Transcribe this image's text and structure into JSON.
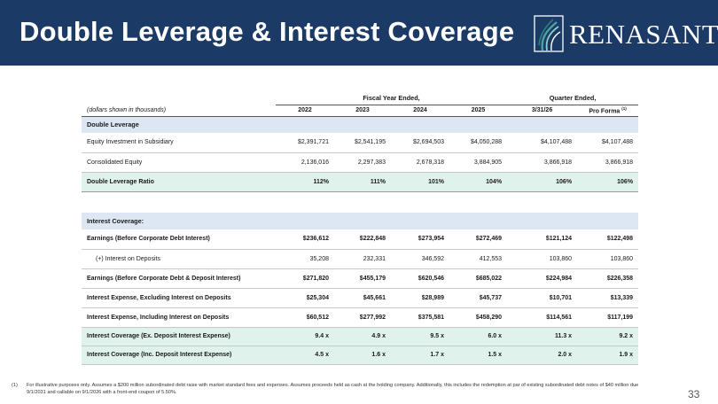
{
  "header": {
    "title": "Double Leverage & Interest Coverage",
    "logo_text": "RENASANT"
  },
  "table": {
    "group_labels": {
      "fiscal": "Fiscal Year Ended,",
      "quarter": "Quarter Ended,"
    },
    "units_note": "(dollars shown in thousands)",
    "columns": [
      "2022",
      "2023",
      "2024",
      "2025",
      "3/31/26",
      "Pro Forma"
    ],
    "pro_forma_footnote_ref": "(1)",
    "double_leverage": {
      "section_label": "Double Leverage",
      "rows": [
        {
          "label": "Equity Investment in Subsidiary",
          "values": [
            "$2,391,721",
            "$2,541,195",
            "$2,694,503",
            "$4,050,288",
            "$4,107,488",
            "$4,107,488"
          ]
        },
        {
          "label": "Consolidated Equity",
          "values": [
            "2,136,016",
            "2,297,383",
            "2,678,318",
            "3,884,905",
            "3,866,918",
            "3,866,918"
          ]
        },
        {
          "label": "Double Leverage Ratio",
          "values": [
            "112%",
            "111%",
            "101%",
            "104%",
            "106%",
            "106%"
          ]
        }
      ]
    },
    "interest_coverage": {
      "section_label": "Interest Coverage:",
      "rows": [
        {
          "label": "Earnings (Before Corporate Debt Interest)",
          "values": [
            "$236,612",
            "$222,848",
            "$273,954",
            "$272,469",
            "$121,124",
            "$122,498"
          ]
        },
        {
          "label": "(+) Interest on Deposits",
          "values": [
            "35,208",
            "232,331",
            "346,592",
            "412,553",
            "103,860",
            "103,860"
          ]
        },
        {
          "label": "Earnings (Before Corporate Debt & Deposit Interest)",
          "values": [
            "$271,820",
            "$455,179",
            "$620,546",
            "$685,022",
            "$224,984",
            "$226,358"
          ]
        },
        {
          "label": "Interest Expense, Excluding Interest on Deposits",
          "values": [
            "$25,304",
            "$45,661",
            "$28,989",
            "$45,737",
            "$10,701",
            "$13,339"
          ]
        },
        {
          "label": "Interest Expense, Including Interest on Deposits",
          "values": [
            "$60,512",
            "$277,992",
            "$375,581",
            "$458,290",
            "$114,561",
            "$117,199"
          ]
        },
        {
          "label": "Interest Coverage (Ex. Deposit Interest Expense)",
          "values": [
            "9.4 x",
            "4.9 x",
            "9.5 x",
            "6.0 x",
            "11.3 x",
            "9.2 x"
          ]
        },
        {
          "label": "Interest Coverage (Inc. Deposit Interest Expense)",
          "values": [
            "4.5 x",
            "1.6 x",
            "1.7 x",
            "1.5 x",
            "2.0 x",
            "1.9 x"
          ]
        }
      ]
    }
  },
  "footnote": {
    "marker": "(1)",
    "text": "For illustrative purposes only. Assumes a $200 million subordinated debt raise with market standard fees and expenses. Assumes proceeds held as cash at the holding company. Additionally, this includes the redemption at par of existing subordinated debt notes of $40 million due 9/1/2031 and callable on 9/1/2026 with a front-end coupon of 5.50%."
  },
  "page_number": "33",
  "colors": {
    "header_bg": "#1b3a66",
    "section_bg": "#dde7f3",
    "highlight_bg": "#dff2ec",
    "logo_accent": "#4aa3a0"
  }
}
